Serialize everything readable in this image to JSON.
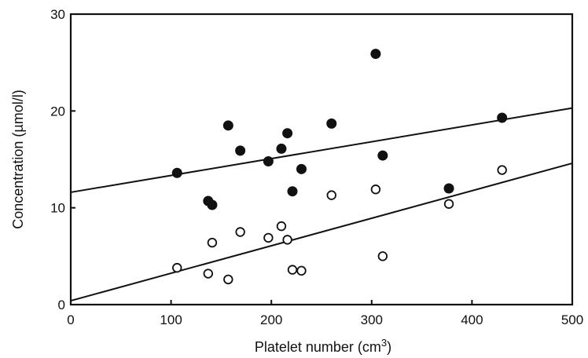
{
  "chart_data": {
    "type": "scatter",
    "title": "",
    "xlabel": "Platelet number (cm",
    "xlabel_superscript": "3",
    "xlabel_suffix": ")",
    "ylabel": "Concentration (µmol/l)",
    "xlim": [
      0,
      500
    ],
    "ylim": [
      0,
      30
    ],
    "xticks": [
      0,
      100,
      200,
      300,
      400,
      500
    ],
    "yticks": [
      0,
      10,
      20,
      30
    ],
    "grid": false,
    "series": [
      {
        "marker": "filled-circle",
        "points": [
          [
            106,
            13.6
          ],
          [
            137,
            10.7
          ],
          [
            141,
            10.3
          ],
          [
            157,
            18.5
          ],
          [
            169,
            15.9
          ],
          [
            197,
            14.8
          ],
          [
            210,
            16.1
          ],
          [
            216,
            17.7
          ],
          [
            221,
            11.7
          ],
          [
            230,
            14.0
          ],
          [
            260,
            18.7
          ],
          [
            304,
            25.9
          ],
          [
            311,
            15.4
          ],
          [
            377,
            12.0
          ],
          [
            430,
            19.3
          ]
        ],
        "fit": {
          "x": [
            0,
            500
          ],
          "y": [
            11.6,
            20.3
          ]
        }
      },
      {
        "marker": "open-circle",
        "points": [
          [
            106,
            3.8
          ],
          [
            137,
            3.2
          ],
          [
            141,
            6.4
          ],
          [
            157,
            2.6
          ],
          [
            169,
            7.5
          ],
          [
            197,
            6.9
          ],
          [
            210,
            8.1
          ],
          [
            216,
            6.7
          ],
          [
            221,
            3.6
          ],
          [
            230,
            3.5
          ],
          [
            260,
            11.3
          ],
          [
            304,
            11.9
          ],
          [
            311,
            5.0
          ],
          [
            377,
            10.4
          ],
          [
            430,
            13.9
          ]
        ],
        "fit": {
          "x": [
            0,
            500
          ],
          "y": [
            0.4,
            14.6
          ]
        }
      }
    ]
  }
}
